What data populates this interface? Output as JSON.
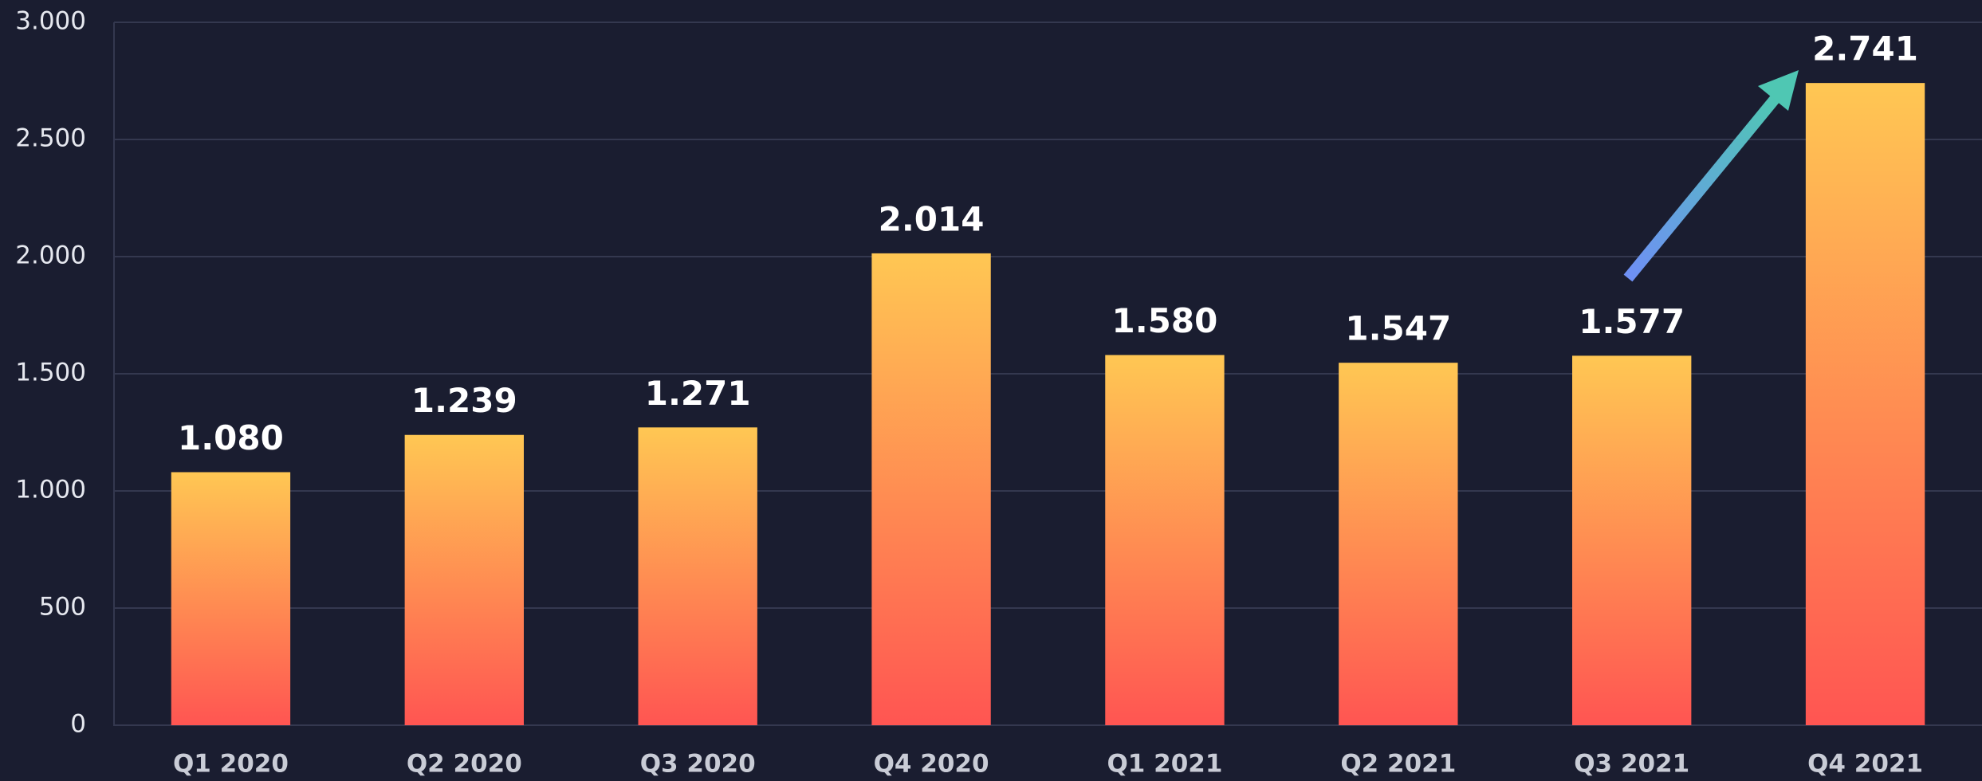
{
  "chart_data": {
    "type": "bar",
    "categories": [
      "Q1 2020",
      "Q2 2020",
      "Q3 2020",
      "Q4 2020",
      "Q1 2021",
      "Q2 2021",
      "Q3 2021",
      "Q4 2021"
    ],
    "values": [
      1080,
      1239,
      1271,
      2014,
      1580,
      1547,
      1577,
      2741
    ],
    "value_labels": [
      "1.080",
      "1.239",
      "1.271",
      "2.014",
      "1.580",
      "1.547",
      "1.577",
      "2.741"
    ],
    "gradient": [
      "#ffc753",
      "#ff5552"
    ],
    "ylim": [
      0,
      3000
    ],
    "yticks": [
      0,
      500,
      {
        "value": 1000,
        "label": "1.000"
      },
      {
        "value": 1500,
        "label": "1.500"
      },
      {
        "value": 2000,
        "label": "2.000"
      },
      {
        "value": 2500,
        "label": "2.500"
      },
      {
        "value": 3000,
        "label": "3.000"
      }
    ],
    "grid": true
  }
}
